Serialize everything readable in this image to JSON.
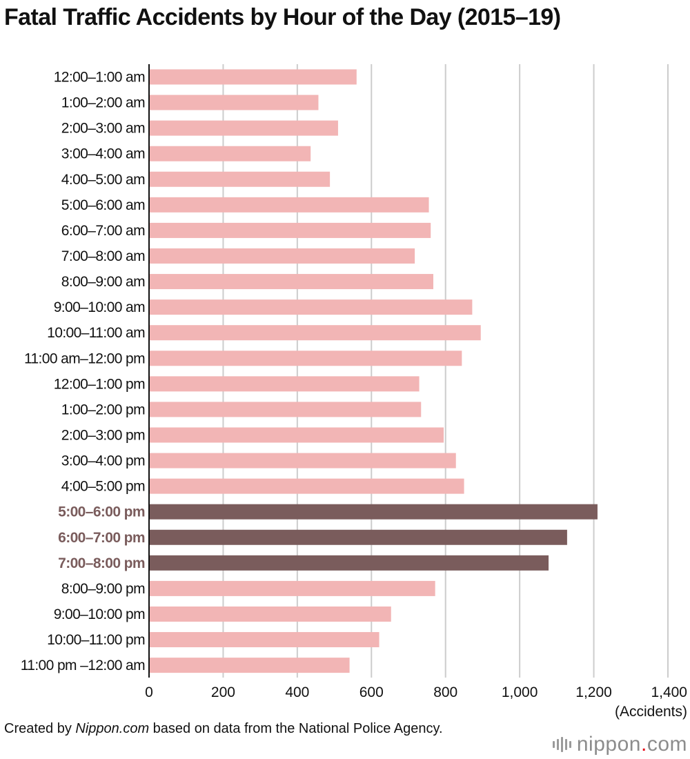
{
  "title": "Fatal Traffic Accidents by Hour of the Day (2015–19)",
  "unit_label": "(Accidents)",
  "footer": {
    "prefix": "Created by ",
    "brand": "Nippon.com",
    "suffix": " based on data from the National Police Agency."
  },
  "logo": {
    "name": "nippon",
    "dot": ".",
    "tld": "com",
    "dot_color": "#e60012"
  },
  "colors": {
    "normal_bar": "#f2b5b5",
    "highlight_bar": "#7a5c5c",
    "highlight_label": "#7a5c5c",
    "grid": "#cccccc",
    "axis": "#111111"
  },
  "chart_data": {
    "type": "bar",
    "orientation": "horizontal",
    "title": "Fatal Traffic Accidents by Hour of the Day (2015–19)",
    "xlabel": "(Accidents)",
    "ylabel": "",
    "xlim": [
      0,
      1400
    ],
    "xticks": [
      0,
      200,
      400,
      600,
      800,
      1000,
      1200,
      1400
    ],
    "xtick_labels": [
      "0",
      "200",
      "400",
      "600",
      "800",
      "1,000",
      "1,200",
      "1,400"
    ],
    "grid": true,
    "categories": [
      "12:00–1:00 am",
      "1:00–2:00 am",
      "2:00–3:00 am",
      "3:00–4:00 am",
      "4:00–5:00 am",
      "5:00–6:00 am",
      "6:00–7:00 am",
      "7:00–8:00 am",
      "8:00–9:00 am",
      "9:00–10:00 am",
      "10:00–11:00 am",
      "11:00 am–12:00 pm",
      "12:00–1:00 pm",
      "1:00–2:00 pm",
      "2:00–3:00 pm",
      "3:00–4:00 pm",
      "4:00–5:00 pm",
      "5:00–6:00 pm",
      "6:00–7:00 pm",
      "7:00–8:00 pm",
      "8:00–9:00 pm",
      "9:00–10:00 pm",
      "10:00–11:00 pm",
      "11:00 pm –12:00 am"
    ],
    "values": [
      560,
      457,
      510,
      436,
      488,
      755,
      760,
      717,
      767,
      872,
      895,
      844,
      729,
      734,
      795,
      828,
      850,
      1210,
      1128,
      1078,
      772,
      653,
      621,
      541
    ],
    "highlighted": [
      "5:00–6:00 pm",
      "6:00–7:00 pm",
      "7:00–8:00 pm"
    ]
  }
}
